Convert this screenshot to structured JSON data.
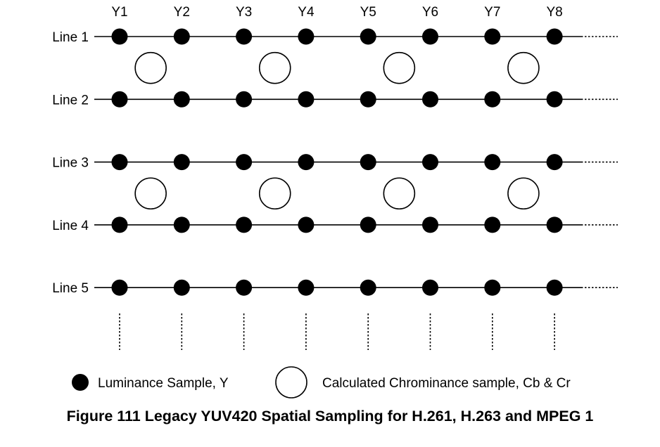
{
  "diagram": {
    "columns": [
      "Y1",
      "Y2",
      "Y3",
      "Y4",
      "Y5",
      "Y6",
      "Y7",
      "Y8"
    ],
    "lines": [
      "Line 1",
      "Line 2",
      "Line 3",
      "Line 4",
      "Line 5"
    ],
    "chroma_line_pairs": [
      [
        1,
        2
      ],
      [
        3,
        4
      ]
    ],
    "chroma_per_pair": 4,
    "colors": {
      "luma": "#000000",
      "chroma_fill": "#ffffff",
      "stroke": "#000000"
    },
    "icons": {
      "luma": "filled-circle-icon",
      "chroma": "hollow-circle-icon"
    }
  },
  "legend": {
    "luminance_label": "Luminance Sample, Y",
    "chrominance_label": "Calculated Chrominance sample, Cb & Cr"
  },
  "caption": "Figure 111 Legacy YUV420 Spatial Sampling for H.261, H.263 and MPEG 1"
}
